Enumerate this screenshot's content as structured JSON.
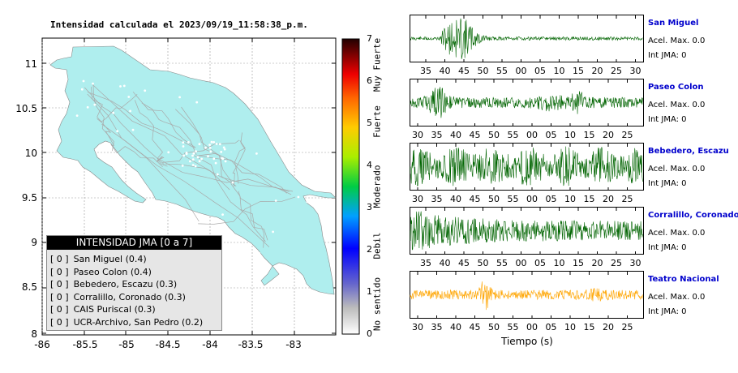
{
  "map": {
    "title": "Intensidad calculada el 2023/09/19_11:58:38_p.m.",
    "lat_ticks": [
      "11",
      "10.5",
      "10",
      "9.5",
      "9",
      "8.5",
      "8"
    ],
    "lon_ticks": [
      "-86",
      "-85.5",
      "-85",
      "-84.5",
      "-84",
      "-83.5",
      "-83"
    ]
  },
  "legend": {
    "header": "INTENSIDAD JMA [0 a 7]",
    "items": [
      {
        "badge": "[ 0 ]",
        "label": "San Miguel (0.4)"
      },
      {
        "badge": "[ 0 ]",
        "label": "Paseo Colon (0.4)"
      },
      {
        "badge": "[ 0 ]",
        "label": "Bebedero, Escazu (0.3)"
      },
      {
        "badge": "[ 0 ]",
        "label": "Corralillo, Coronado (0.3)"
      },
      {
        "badge": "[ 0 ]",
        "label": "CAIS Puriscal (0.3)"
      },
      {
        "badge": "[ 0 ]",
        "label": "UCR-Archivo, San Pedro (0.2)"
      }
    ]
  },
  "colorbar": {
    "ticks": [
      "7",
      "6",
      "5",
      "4",
      "3",
      "2",
      "1",
      "0"
    ],
    "labels": [
      "Muy Fuerte",
      "Fuerte",
      "Moderado",
      "Debil",
      "No sentido"
    ]
  },
  "stations": [
    {
      "name": "San Miguel",
      "accel": "Acel. Max. 0.0",
      "int": "Int JMA: 0",
      "color": "#006400",
      "ticks": [
        "35",
        "40",
        "45",
        "50",
        "55",
        "00",
        "05",
        "10",
        "15",
        "20",
        "25",
        "30"
      ]
    },
    {
      "name": "Paseo Colon",
      "accel": "Acel. Max. 0.0",
      "int": "Int JMA: 0",
      "color": "#006400",
      "ticks": [
        "30",
        "35",
        "40",
        "45",
        "50",
        "55",
        "00",
        "05",
        "10",
        "15",
        "20",
        "25"
      ]
    },
    {
      "name": "Bebedero, Escazu",
      "accel": "Acel. Max. 0.0",
      "int": "Int JMA: 0",
      "color": "#006400",
      "ticks": [
        "30",
        "35",
        "40",
        "45",
        "50",
        "55",
        "00",
        "05",
        "10",
        "15",
        "20",
        "25"
      ]
    },
    {
      "name": "Corralillo, Coronado",
      "accel": "Acel. Max. 0.0",
      "int": "Int JMA: 0",
      "color": "#006400",
      "ticks": [
        "35",
        "40",
        "45",
        "50",
        "55",
        "00",
        "05",
        "10",
        "15",
        "20",
        "25",
        "30"
      ]
    },
    {
      "name": "Teatro Nacional",
      "accel": "Acel. Max. 0.0",
      "int": "Int JMA: 0",
      "color": "#FFA500",
      "ticks": [
        "30",
        "35",
        "40",
        "45",
        "50",
        "55",
        "00",
        "05",
        "10",
        "15",
        "20",
        "25"
      ]
    }
  ],
  "xlabel": "Tiempo (s)",
  "colors": {
    "land": "#AFEEEE",
    "station_name": "#0000CC",
    "legend_header_bg": "#000000",
    "legend_bg": "#E6E6E6"
  }
}
